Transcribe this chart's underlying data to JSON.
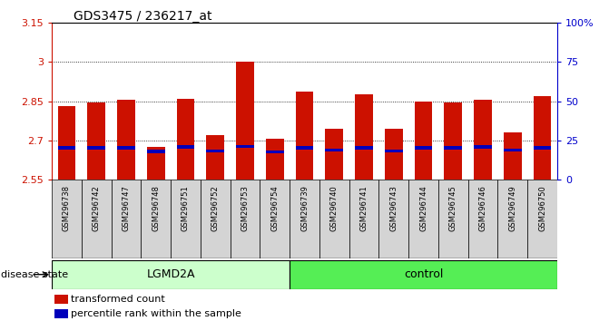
{
  "title": "GDS3475 / 236217_at",
  "samples": [
    "GSM296738",
    "GSM296742",
    "GSM296747",
    "GSM296748",
    "GSM296751",
    "GSM296752",
    "GSM296753",
    "GSM296754",
    "GSM296739",
    "GSM296740",
    "GSM296741",
    "GSM296743",
    "GSM296744",
    "GSM296745",
    "GSM296746",
    "GSM296749",
    "GSM296750"
  ],
  "groups": [
    "LGMD2A",
    "LGMD2A",
    "LGMD2A",
    "LGMD2A",
    "LGMD2A",
    "LGMD2A",
    "LGMD2A",
    "LGMD2A",
    "control",
    "control",
    "control",
    "control",
    "control",
    "control",
    "control",
    "control",
    "control"
  ],
  "transformed_count": [
    2.83,
    2.845,
    2.855,
    2.675,
    2.86,
    2.72,
    3.0,
    2.705,
    2.885,
    2.745,
    2.875,
    2.745,
    2.85,
    2.845,
    2.855,
    2.73,
    2.87
  ],
  "percentile_left": [
    2.672,
    2.672,
    2.672,
    2.658,
    2.676,
    2.66,
    2.678,
    2.656,
    2.672,
    2.664,
    2.672,
    2.66,
    2.672,
    2.672,
    2.676,
    2.664,
    2.672
  ],
  "bar_bottom": 2.55,
  "ylim_left": [
    2.55,
    3.15
  ],
  "ylim_right": [
    0,
    100
  ],
  "yticks_left": [
    2.55,
    2.7,
    2.85,
    3.0,
    3.15
  ],
  "ytick_labels_left": [
    "2.55",
    "2.7",
    "2.85",
    "3",
    "3.15"
  ],
  "yticks_right": [
    0,
    25,
    50,
    75,
    100
  ],
  "ytick_labels_right": [
    "0",
    "25",
    "50",
    "75",
    "100%"
  ],
  "grid_lines": [
    2.7,
    2.85,
    3.0
  ],
  "group_colors": {
    "LGMD2A": "#ccffcc",
    "control": "#55ee55"
  },
  "bar_color": "#cc1100",
  "percentile_color": "#0000bb",
  "left_axis_color": "#cc1100",
  "right_axis_color": "#0000cc",
  "lgmd2a_count": 8,
  "control_count": 9,
  "legend_items": [
    "transformed count",
    "percentile rank within the sample"
  ],
  "disease_state_label": "disease state",
  "figsize": [
    6.71,
    3.54
  ]
}
